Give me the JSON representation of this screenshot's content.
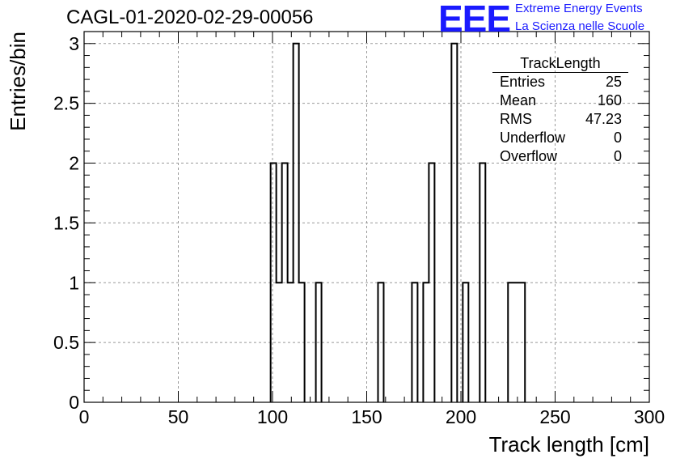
{
  "header": {
    "run_title": "CAGL-01-2020-02-29-00056",
    "logo_text": "EEE",
    "logo_line1": "Extreme Energy Events",
    "logo_line2": "La Scienza nelle Scuole",
    "logo_color": "#1a1aff"
  },
  "stats": {
    "title": "TrackLength",
    "rows": [
      {
        "label": "Entries",
        "value": "25"
      },
      {
        "label": "Mean",
        "value": "160"
      },
      {
        "label": "RMS",
        "value": "47.23"
      },
      {
        "label": "Underflow",
        "value": "0"
      },
      {
        "label": "Overflow",
        "value": "0"
      }
    ]
  },
  "chart_data": {
    "type": "bar",
    "style": "step-histogram",
    "xlabel": "Track length [cm]",
    "ylabel": "Entries/bin",
    "xlim": [
      0,
      300
    ],
    "ylim": [
      0,
      3.1
    ],
    "grid": true,
    "bin_width": 3,
    "xticks": [
      "0",
      "50",
      "100",
      "150",
      "200",
      "250",
      "300"
    ],
    "yticks": [
      "0",
      "0.5",
      "1",
      "1.5",
      "2",
      "2.5",
      "3"
    ],
    "bins": [
      {
        "x": 99,
        "value": 2
      },
      {
        "x": 102,
        "value": 1
      },
      {
        "x": 105,
        "value": 2
      },
      {
        "x": 108,
        "value": 1
      },
      {
        "x": 111,
        "value": 3
      },
      {
        "x": 114,
        "value": 1
      },
      {
        "x": 123,
        "value": 1
      },
      {
        "x": 156,
        "value": 1
      },
      {
        "x": 174,
        "value": 1
      },
      {
        "x": 180,
        "value": 1
      },
      {
        "x": 183,
        "value": 2
      },
      {
        "x": 195,
        "value": 3
      },
      {
        "x": 201,
        "value": 1
      },
      {
        "x": 210,
        "value": 2
      },
      {
        "x": 225,
        "value": 1
      },
      {
        "x": 228,
        "value": 1
      },
      {
        "x": 231,
        "value": 1
      }
    ]
  }
}
